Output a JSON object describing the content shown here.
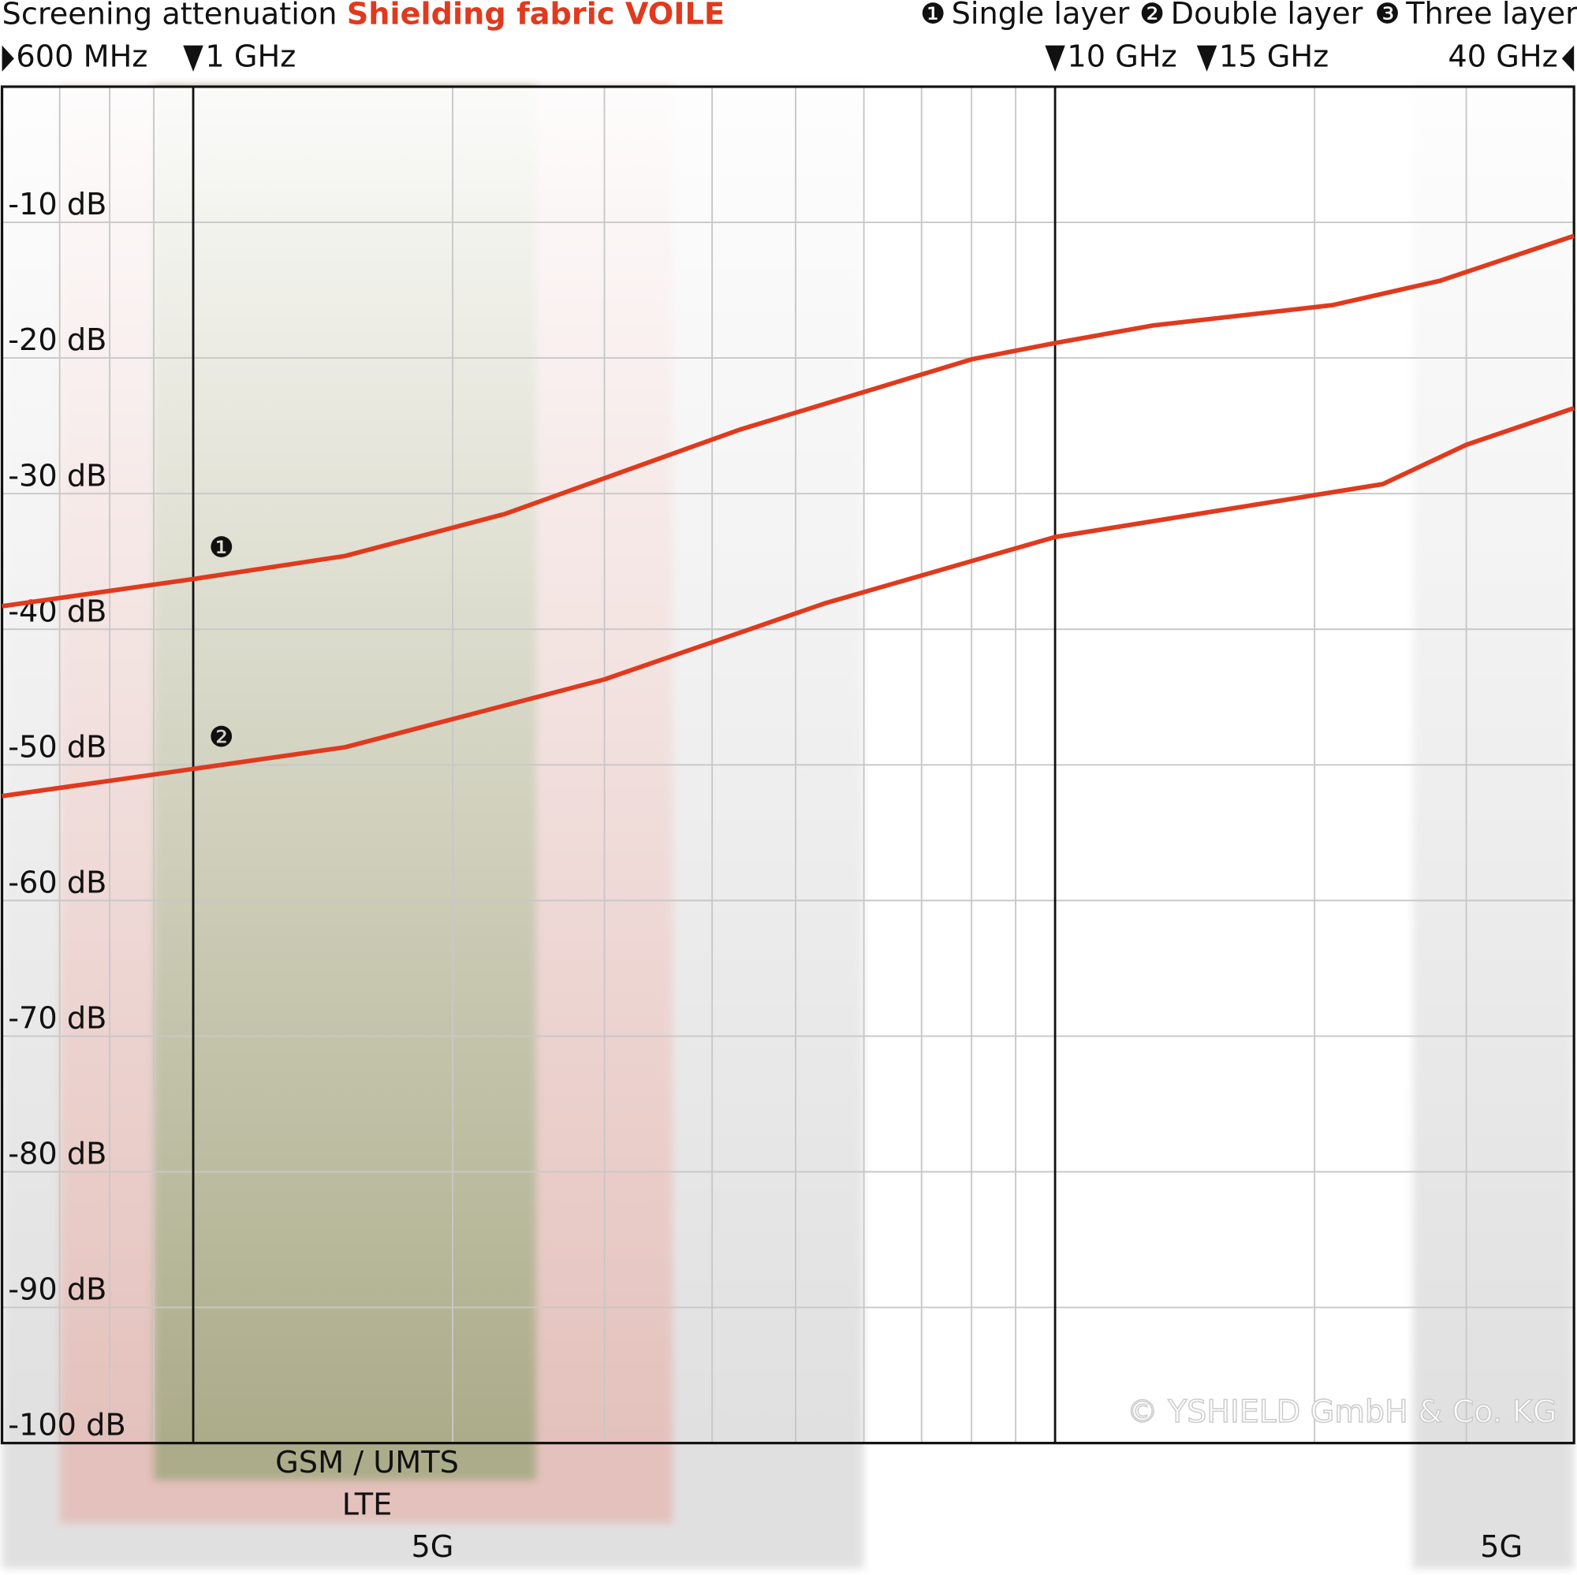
{
  "chart_data": {
    "type": "line",
    "title": "Screening attenuation",
    "title_highlight": "Shielding fabric VOILE",
    "x_scale": "log",
    "xlim": [
      0.6,
      40
    ],
    "ylim": [
      -100,
      0
    ],
    "xticks": [
      {
        "value": 0.6,
        "label": "600 MHz"
      },
      {
        "value": 1,
        "label": "1 GHz"
      },
      {
        "value": 10,
        "label": "10 GHz"
      },
      {
        "value": 15,
        "label": "15 GHz"
      },
      {
        "value": 40,
        "label": "40 GHz"
      }
    ],
    "xgrid": [
      0.7,
      0.8,
      0.9,
      2,
      3,
      4,
      5,
      6,
      7,
      8,
      9,
      20,
      30
    ],
    "xgrid_major": [
      1,
      10
    ],
    "yticks": [
      {
        "value": -10,
        "label": "-10 dB"
      },
      {
        "value": -20,
        "label": "-20 dB"
      },
      {
        "value": -30,
        "label": "-30 dB"
      },
      {
        "value": -40,
        "label": "-40 dB"
      },
      {
        "value": -50,
        "label": "-50 dB"
      },
      {
        "value": -60,
        "label": "-60 dB"
      },
      {
        "value": -70,
        "label": "-70 dB"
      },
      {
        "value": -80,
        "label": "-80 dB"
      },
      {
        "value": -90,
        "label": "-90 dB"
      },
      {
        "value": -100,
        "label": "-100 dB"
      }
    ],
    "grid": true,
    "series": [
      {
        "name": "Single layer",
        "badge": "❶",
        "color": "#e03a1e",
        "x": [
          0.6,
          1,
          1.5,
          2.3,
          4.3,
          8,
          10,
          13,
          21,
          28,
          40
        ],
        "values": [
          -38.3,
          -36.3,
          -34.6,
          -31.5,
          -25.3,
          -20.1,
          -18.9,
          -17.6,
          -16.1,
          -14.3,
          -11.0
        ]
      },
      {
        "name": "Double layer",
        "badge": "❷",
        "color": "#e03a1e",
        "x": [
          0.6,
          1,
          1.5,
          3,
          5.4,
          10,
          24,
          30,
          40
        ],
        "values": [
          -52.3,
          -50.3,
          -48.7,
          -43.7,
          -38.1,
          -33.2,
          -29.3,
          -26.4,
          -23.7
        ]
      },
      {
        "name": "Three layer",
        "badge": "❸",
        "color": "#e03a1e",
        "x": [],
        "values": []
      }
    ],
    "bands": [
      {
        "label": "5G",
        "from": 0.6,
        "to": 6,
        "color": "#c8c8c8"
      },
      {
        "label": "5G",
        "from": 26,
        "to": 40,
        "color": "#c8c8c8"
      },
      {
        "label": "LTE",
        "from": 0.7,
        "to": 3.6,
        "color": "#e8a9a0"
      },
      {
        "label": "GSM / UMTS",
        "from": 0.9,
        "to": 2.5,
        "color": "#9aa67a"
      }
    ],
    "annotation": "© YSHIELD GmbH & Co. KG"
  }
}
